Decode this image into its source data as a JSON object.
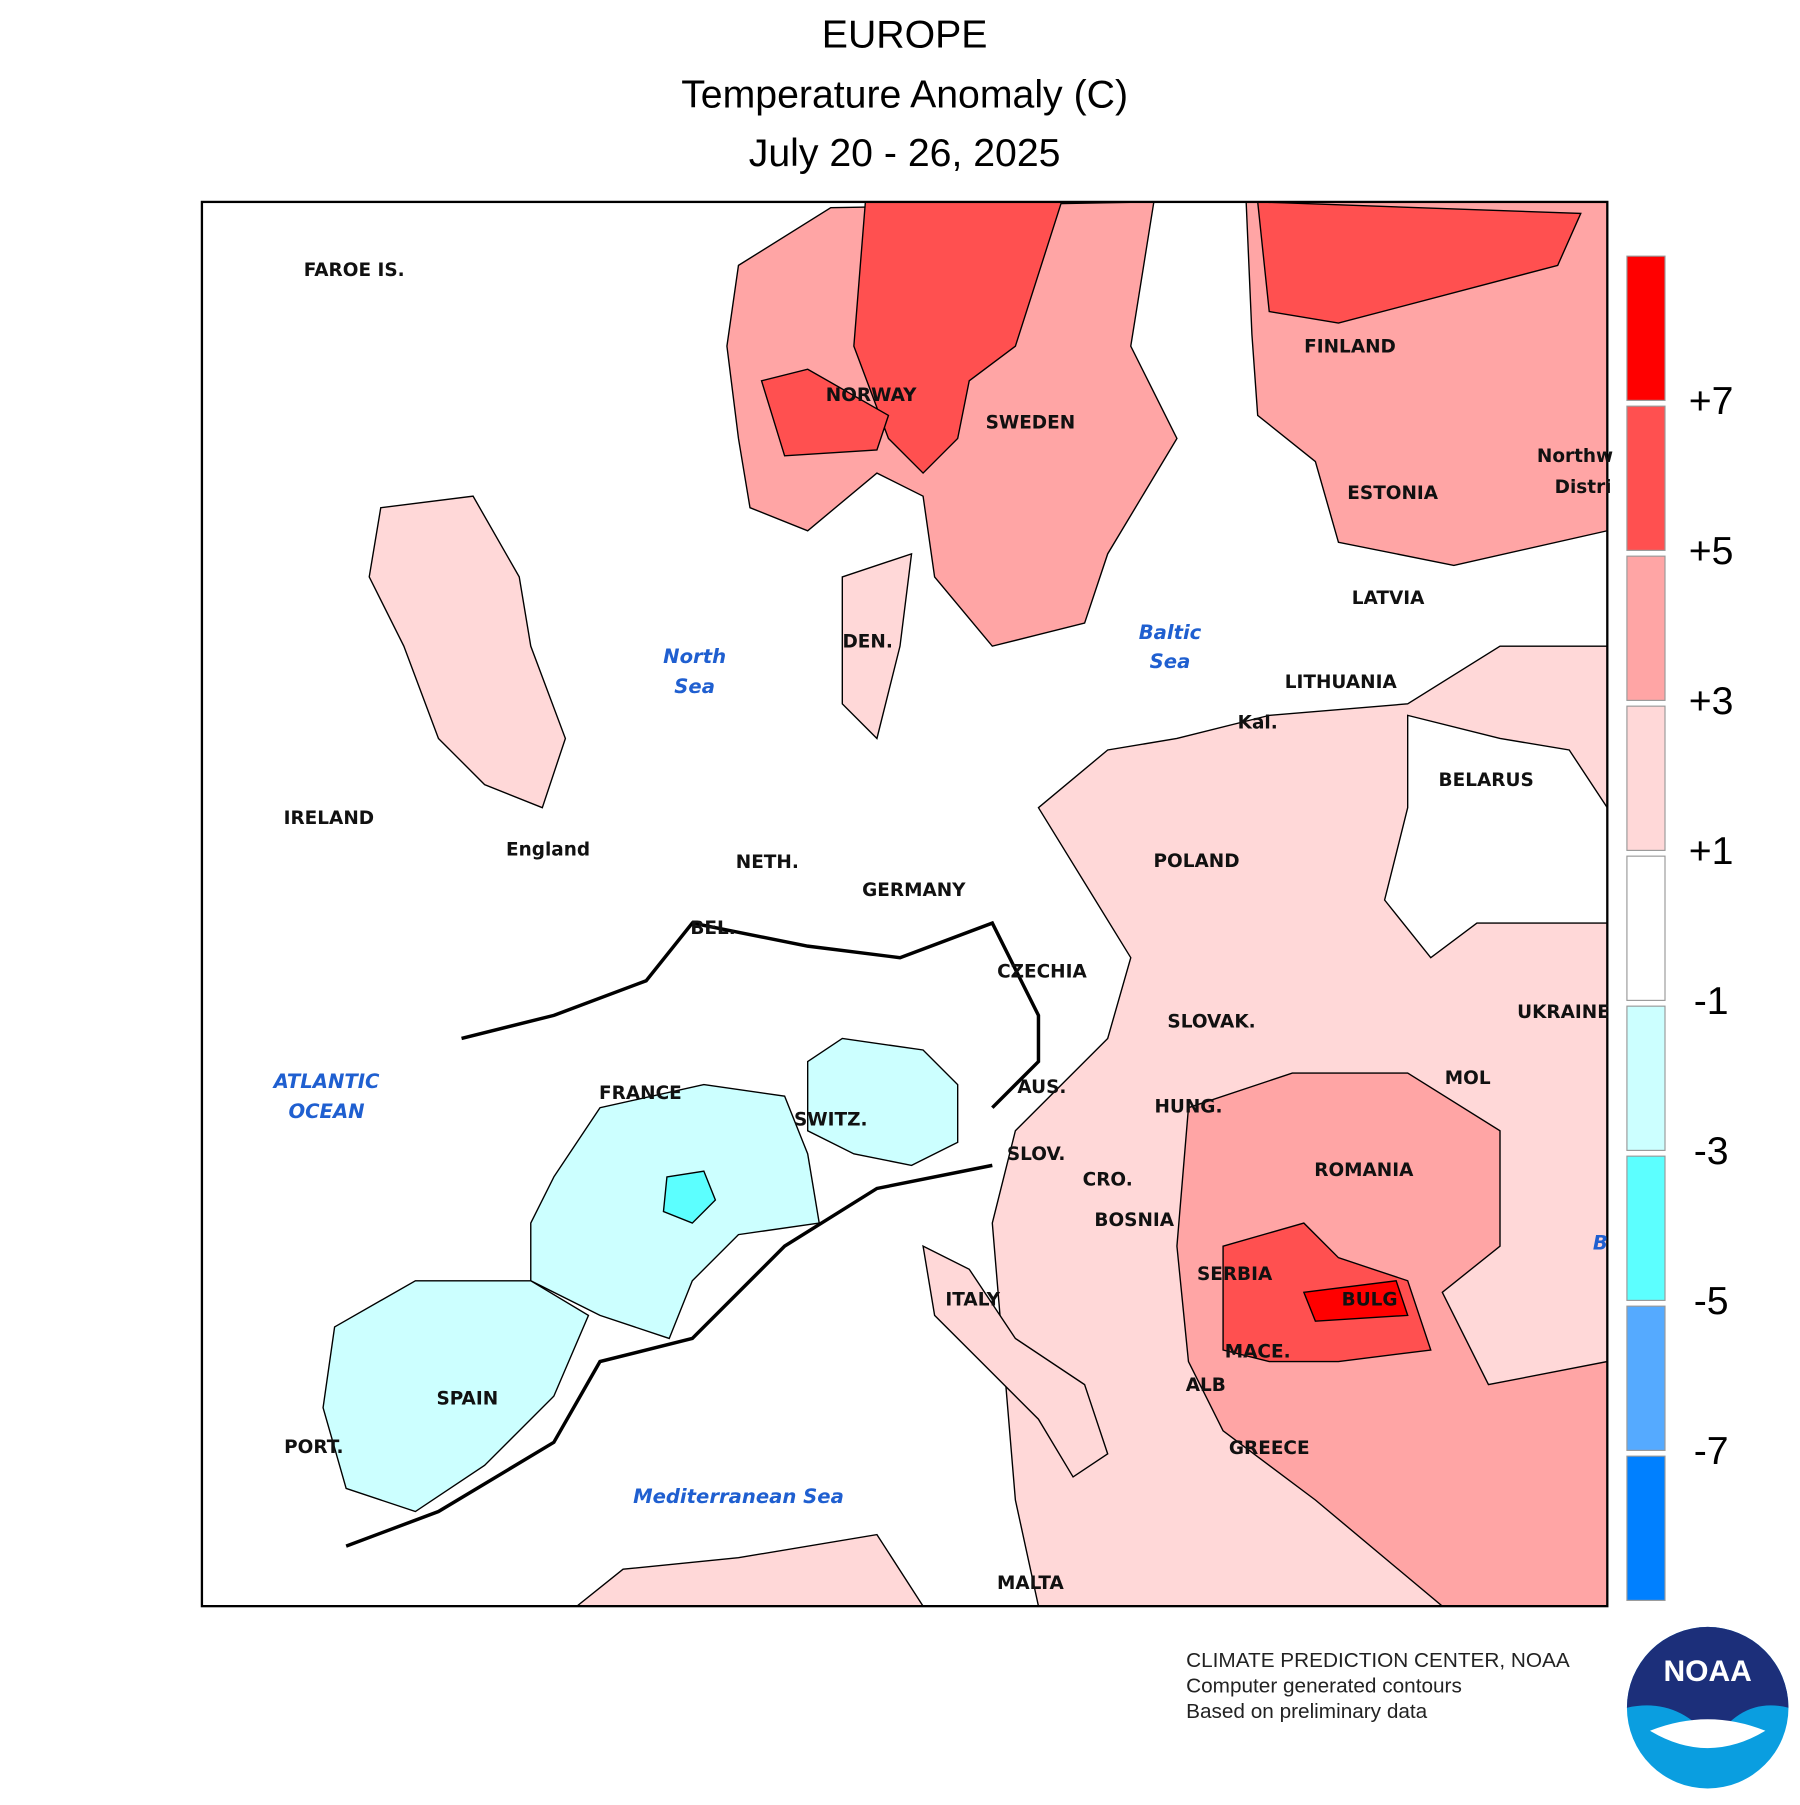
{
  "header": {
    "title": "EUROPE",
    "subtitle": "Temperature Anomaly (C)",
    "period": "July 20 - 26, 2025"
  },
  "map": {
    "labels": [
      "FAROE IS.",
      "NORWAY",
      "SWEDEN",
      "FINLAND",
      "ESTONIA",
      "Northw",
      "Distri",
      "LATVIA",
      "LITHUANIA",
      "Kal.",
      "BELARUS",
      "POLAND",
      "UKRAINE",
      "MOL",
      "ROMANIA",
      "HUNG.",
      "SLOVAK.",
      "CZECHIA",
      "AUS.",
      "SLOV.",
      "CRO.",
      "BOSNIA",
      "SERBIA",
      "BULG",
      "MACE.",
      "ALB",
      "GREECE",
      "MALTA",
      "ITALY",
      "SWITZ.",
      "FRANCE",
      "SPAIN",
      "PORT.",
      "GERMANY",
      "NETH.",
      "BEL.",
      "DEN.",
      "England",
      "IRELAND"
    ],
    "water_labels": [
      "ATLANTIC",
      "OCEAN",
      "North",
      "Sea",
      "Baltic",
      "Sea",
      "Mediterranean Sea",
      "B"
    ]
  },
  "legend": {
    "ticks": [
      "+7",
      "+5",
      "+3",
      "+1",
      "-1",
      "-3",
      "-5",
      "-7"
    ],
    "colors": [
      "#ff0000",
      "#ff5050",
      "#ffa5a5",
      "#ffd8d8",
      "#ffffff",
      "#ccffff",
      "#5cffff",
      "#55aaff",
      "#0080ff"
    ]
  },
  "footer": {
    "lines": [
      "CLIMATE PREDICTION CENTER, NOAA",
      "Computer generated contours",
      "Based on preliminary data"
    ]
  },
  "logo": "NOAA"
}
